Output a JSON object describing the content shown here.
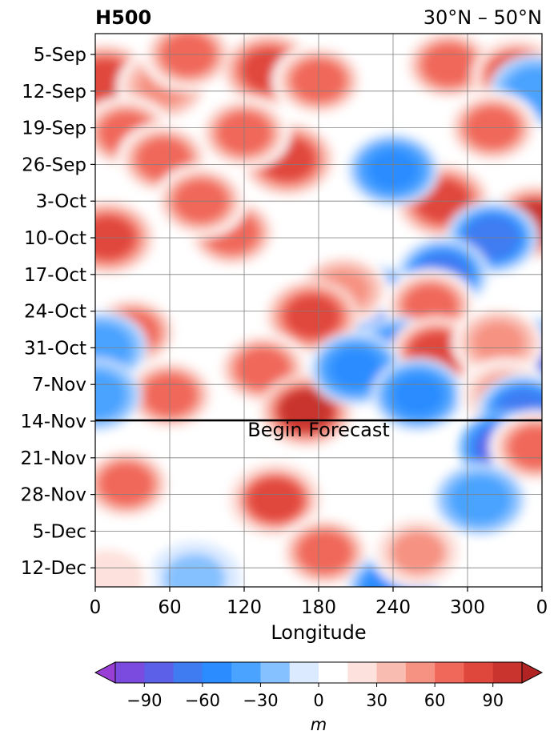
{
  "chart_data": {
    "type": "heatmap",
    "title_left": "H500",
    "title_right": "30°N – 50°N",
    "xlabel": "Longitude",
    "x_ticks": [
      "0",
      "60",
      "120",
      "180",
      "240",
      "300",
      "0"
    ],
    "xlim": [
      0,
      360
    ],
    "y_ticks": [
      "5-Sep",
      "12-Sep",
      "19-Sep",
      "26-Sep",
      "3-Oct",
      "10-Oct",
      "17-Oct",
      "24-Oct",
      "31-Oct",
      "7-Nov",
      "14-Nov",
      "21-Nov",
      "28-Nov",
      "5-Dec",
      "12-Dec"
    ],
    "y_range_days": [
      0,
      106
    ],
    "forecast_start": "14-Nov",
    "annotation": "Begin Forecast",
    "grid": true,
    "colorbar": {
      "label": "m",
      "ticks": [
        "−90",
        "−60",
        "−30",
        "0",
        "30",
        "60",
        "90"
      ],
      "levels": [
        -105,
        -90,
        -75,
        -60,
        -45,
        -30,
        -15,
        0,
        15,
        30,
        45,
        60,
        75,
        90,
        105
      ],
      "colors": [
        "#9a3fd6",
        "#7b4be0",
        "#5c5fe8",
        "#3f7cf2",
        "#2a8cff",
        "#4aa3ff",
        "#86c1ff",
        "#dbeaff",
        "#ffffff",
        "#fde1dc",
        "#f9bcb0",
        "#f69282",
        "#f0685a",
        "#e0473c",
        "#c9342f",
        "#b22424"
      ],
      "extend": "both"
    },
    "features": [
      {
        "lon": 8,
        "day": 5,
        "val": 80
      },
      {
        "lon": 55,
        "day": 6,
        "val": 50
      },
      {
        "lon": 75,
        "day": 0,
        "val": 70
      },
      {
        "lon": 140,
        "day": 3,
        "val": 85
      },
      {
        "lon": 180,
        "day": 5,
        "val": 70
      },
      {
        "lon": 285,
        "day": 2,
        "val": 60
      },
      {
        "lon": 340,
        "day": 4,
        "val": 75
      },
      {
        "lon": 355,
        "day": 7,
        "val": -40
      },
      {
        "lon": 25,
        "day": 15,
        "val": 65
      },
      {
        "lon": 155,
        "day": 20,
        "val": 85
      },
      {
        "lon": 120,
        "day": 15,
        "val": 70
      },
      {
        "lon": 55,
        "day": 20,
        "val": 70
      },
      {
        "lon": 320,
        "day": 14,
        "val": 60
      },
      {
        "lon": 10,
        "day": 35,
        "val": 85
      },
      {
        "lon": 110,
        "day": 34,
        "val": 60
      },
      {
        "lon": 85,
        "day": 28,
        "val": 70
      },
      {
        "lon": 280,
        "day": 28,
        "val": 85
      },
      {
        "lon": 355,
        "day": 32,
        "val": 95
      },
      {
        "lon": 320,
        "day": 35,
        "val": -70
      },
      {
        "lon": 280,
        "day": 42,
        "val": -65
      },
      {
        "lon": 240,
        "day": 22,
        "val": -55
      },
      {
        "lon": 225,
        "day": 47,
        "val": -75
      },
      {
        "lon": 200,
        "day": 45,
        "val": 50
      },
      {
        "lon": 270,
        "day": 48,
        "val": 70
      },
      {
        "lon": 175,
        "day": 50,
        "val": 80
      },
      {
        "lon": 30,
        "day": 53,
        "val": 60
      },
      {
        "lon": 5,
        "day": 56,
        "val": -45
      },
      {
        "lon": 345,
        "day": 57,
        "val": -85
      },
      {
        "lon": 245,
        "day": 57,
        "val": -55
      },
      {
        "lon": 275,
        "day": 57,
        "val": 75
      },
      {
        "lon": 325,
        "day": 55,
        "val": 50
      },
      {
        "lon": 60,
        "day": 65,
        "val": 70
      },
      {
        "lon": 135,
        "day": 60,
        "val": 70
      },
      {
        "lon": 170,
        "day": 68,
        "val": 95
      },
      {
        "lon": 210,
        "day": 60,
        "val": -55
      },
      {
        "lon": 260,
        "day": 65,
        "val": -55
      },
      {
        "lon": 330,
        "day": 65,
        "val": 45
      },
      {
        "lon": 345,
        "day": 68,
        "val": -65
      },
      {
        "lon": 0,
        "day": 65,
        "val": -40
      },
      {
        "lon": 25,
        "day": 82,
        "val": 70
      },
      {
        "lon": 145,
        "day": 85,
        "val": 75
      },
      {
        "lon": 185,
        "day": 95,
        "val": 65
      },
      {
        "lon": 330,
        "day": 75,
        "val": -80
      },
      {
        "lon": 355,
        "day": 75,
        "val": 60
      },
      {
        "lon": 310,
        "day": 85,
        "val": -40
      },
      {
        "lon": 240,
        "day": 102,
        "val": -60
      },
      {
        "lon": 80,
        "day": 100,
        "val": -20
      },
      {
        "lon": 260,
        "day": 95,
        "val": 45
      },
      {
        "lon": 10,
        "day": 100,
        "val": 25
      }
    ]
  }
}
